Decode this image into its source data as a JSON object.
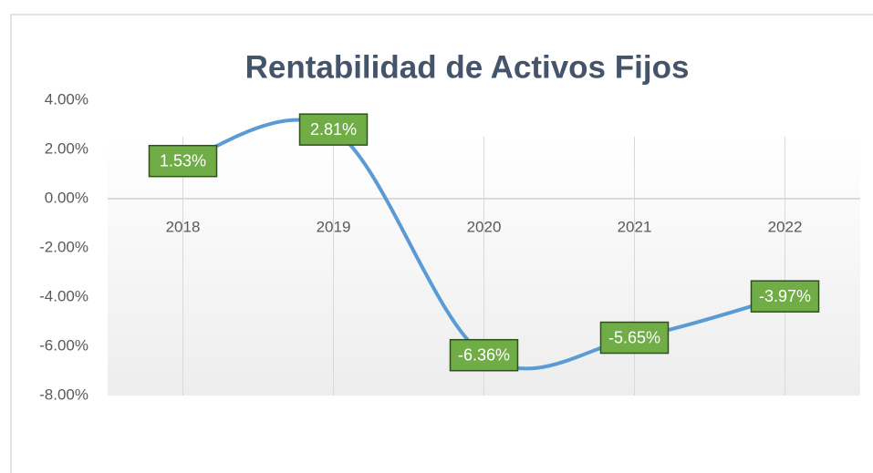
{
  "chart_data": {
    "type": "line",
    "title": "Rentabilidad  de Activos  Fijos",
    "categories": [
      "2018",
      "2019",
      "2020",
      "2021",
      "2022"
    ],
    "series": [
      {
        "name": "Rentabilidad de Activos Fijos",
        "color": "#5b9bd5",
        "values": [
          1.53,
          2.81,
          -6.36,
          -5.65,
          -3.97
        ],
        "value_labels": [
          "1.53%",
          "2.81%",
          "-6.36%",
          "-5.65%",
          "-3.97%"
        ]
      }
    ],
    "label_fill": "#70ad47",
    "label_border": "#2f4f1e",
    "ylim": [
      -8,
      4
    ],
    "yticks": [
      {
        "value": 4,
        "label": "4.00%"
      },
      {
        "value": 2,
        "label": "2.00%"
      },
      {
        "value": 0,
        "label": "0.00%"
      },
      {
        "value": -2,
        "label": "-2.00%"
      },
      {
        "value": -4,
        "label": "-4.00%"
      },
      {
        "value": -6,
        "label": "-6.00%"
      },
      {
        "value": -8,
        "label": "-8.00%"
      }
    ],
    "grid": true
  }
}
